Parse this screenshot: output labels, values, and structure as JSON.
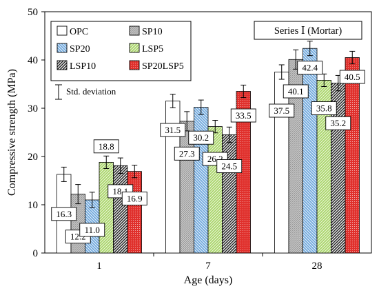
{
  "chart_data": {
    "type": "bar",
    "xlabel": "Age (days)",
    "ylabel": "Compressive strength (MPa)",
    "ylim": [
      0,
      50
    ],
    "yticks": [
      0,
      10,
      20,
      30,
      40,
      50
    ],
    "categories": [
      "1",
      "7",
      "28"
    ],
    "annotation": "Series Ⅰ (Mortar)",
    "error_bar_note": "Std. deviation",
    "grid": false,
    "legend_position": "top-left",
    "series": [
      {
        "name": "OPC",
        "values": [
          16.3,
          31.5,
          37.5
        ],
        "errors": [
          1.5,
          1.4,
          1.5
        ],
        "pattern": "plain",
        "color": "#ffffff"
      },
      {
        "name": "SP10",
        "values": [
          12.2,
          27.3,
          40.1
        ],
        "errors": [
          2.0,
          2.0,
          2.0
        ],
        "pattern": "gray",
        "color": "#bdbdbd"
      },
      {
        "name": "SP20",
        "values": [
          11.0,
          30.2,
          42.4
        ],
        "errors": [
          1.6,
          1.5,
          1.5
        ],
        "pattern": "blue-hatch",
        "color": "#5b9bd5"
      },
      {
        "name": "LSP5",
        "values": [
          18.8,
          26.2,
          35.8
        ],
        "errors": [
          1.3,
          1.3,
          1.3
        ],
        "pattern": "green-hatch",
        "color": "#92d050"
      },
      {
        "name": "LSP10",
        "values": [
          18.1,
          24.5,
          35.2
        ],
        "errors": [
          1.6,
          1.6,
          1.6
        ],
        "pattern": "black-hatch",
        "color": "#333333"
      },
      {
        "name": "SP20LSP5",
        "values": [
          16.9,
          33.5,
          40.5
        ],
        "errors": [
          1.3,
          1.3,
          1.3
        ],
        "pattern": "red-dots",
        "color": "#e53935"
      }
    ]
  }
}
